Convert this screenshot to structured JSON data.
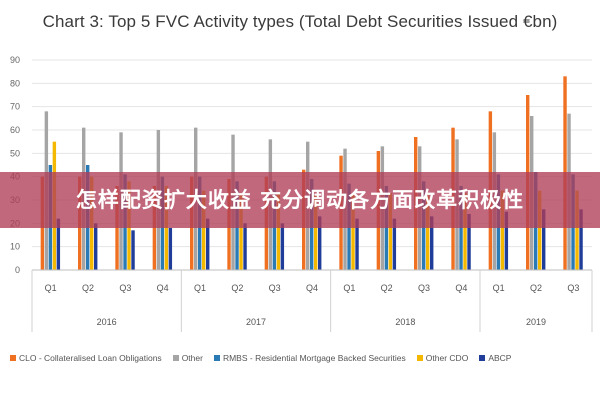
{
  "chart_data": {
    "type": "bar",
    "title": "Chart 3: Top 5 FVC Activity types (Total Debt Securities Issued €bn)",
    "categories": [
      "Q1",
      "Q2",
      "Q3",
      "Q4",
      "Q1",
      "Q2",
      "Q3",
      "Q4",
      "Q1",
      "Q2",
      "Q3",
      "Q4",
      "Q1",
      "Q2",
      "Q3"
    ],
    "years": [
      {
        "label": "2016",
        "count": 4
      },
      {
        "label": "2017",
        "count": 4
      },
      {
        "label": "2018",
        "count": 4
      },
      {
        "label": "2019",
        "count": 3
      }
    ],
    "ylim": [
      0,
      90
    ],
    "yticks": [
      0,
      10,
      20,
      30,
      40,
      50,
      60,
      70,
      80,
      90
    ],
    "grid": true,
    "legend_position": "bottom",
    "series": [
      {
        "name": "CLO - Collateralised Loan Obligations",
        "color": "#f07022",
        "values": [
          40,
          40,
          36,
          36,
          40,
          39,
          40,
          43,
          49,
          51,
          57,
          61,
          68,
          75,
          83
        ]
      },
      {
        "name": "Other",
        "color": "#a5a5a5",
        "values": [
          68,
          61,
          59,
          60,
          61,
          58,
          56,
          55,
          52,
          53,
          53,
          56,
          59,
          66,
          67
        ]
      },
      {
        "name": "RMBS - Residential Mortgage Backed Securities",
        "color": "#2a7ab5",
        "values": [
          45,
          45,
          41,
          40,
          40,
          38,
          38,
          39,
          37,
          36,
          38,
          36,
          41,
          42,
          41
        ]
      },
      {
        "name": "Other CDO",
        "color": "#f5b800",
        "values": [
          55,
          40,
          38,
          36,
          34,
          33,
          33,
          32,
          33,
          33,
          32,
          33,
          34,
          34,
          34
        ]
      },
      {
        "name": "ABCP",
        "color": "#1f3d99",
        "values": [
          22,
          20,
          17,
          18,
          22,
          20,
          20,
          23,
          22,
          22,
          23,
          24,
          25,
          26,
          26
        ]
      }
    ]
  },
  "overlay": {
    "text": "怎样配资扩大收益 充分调动各方面改革积极性"
  }
}
